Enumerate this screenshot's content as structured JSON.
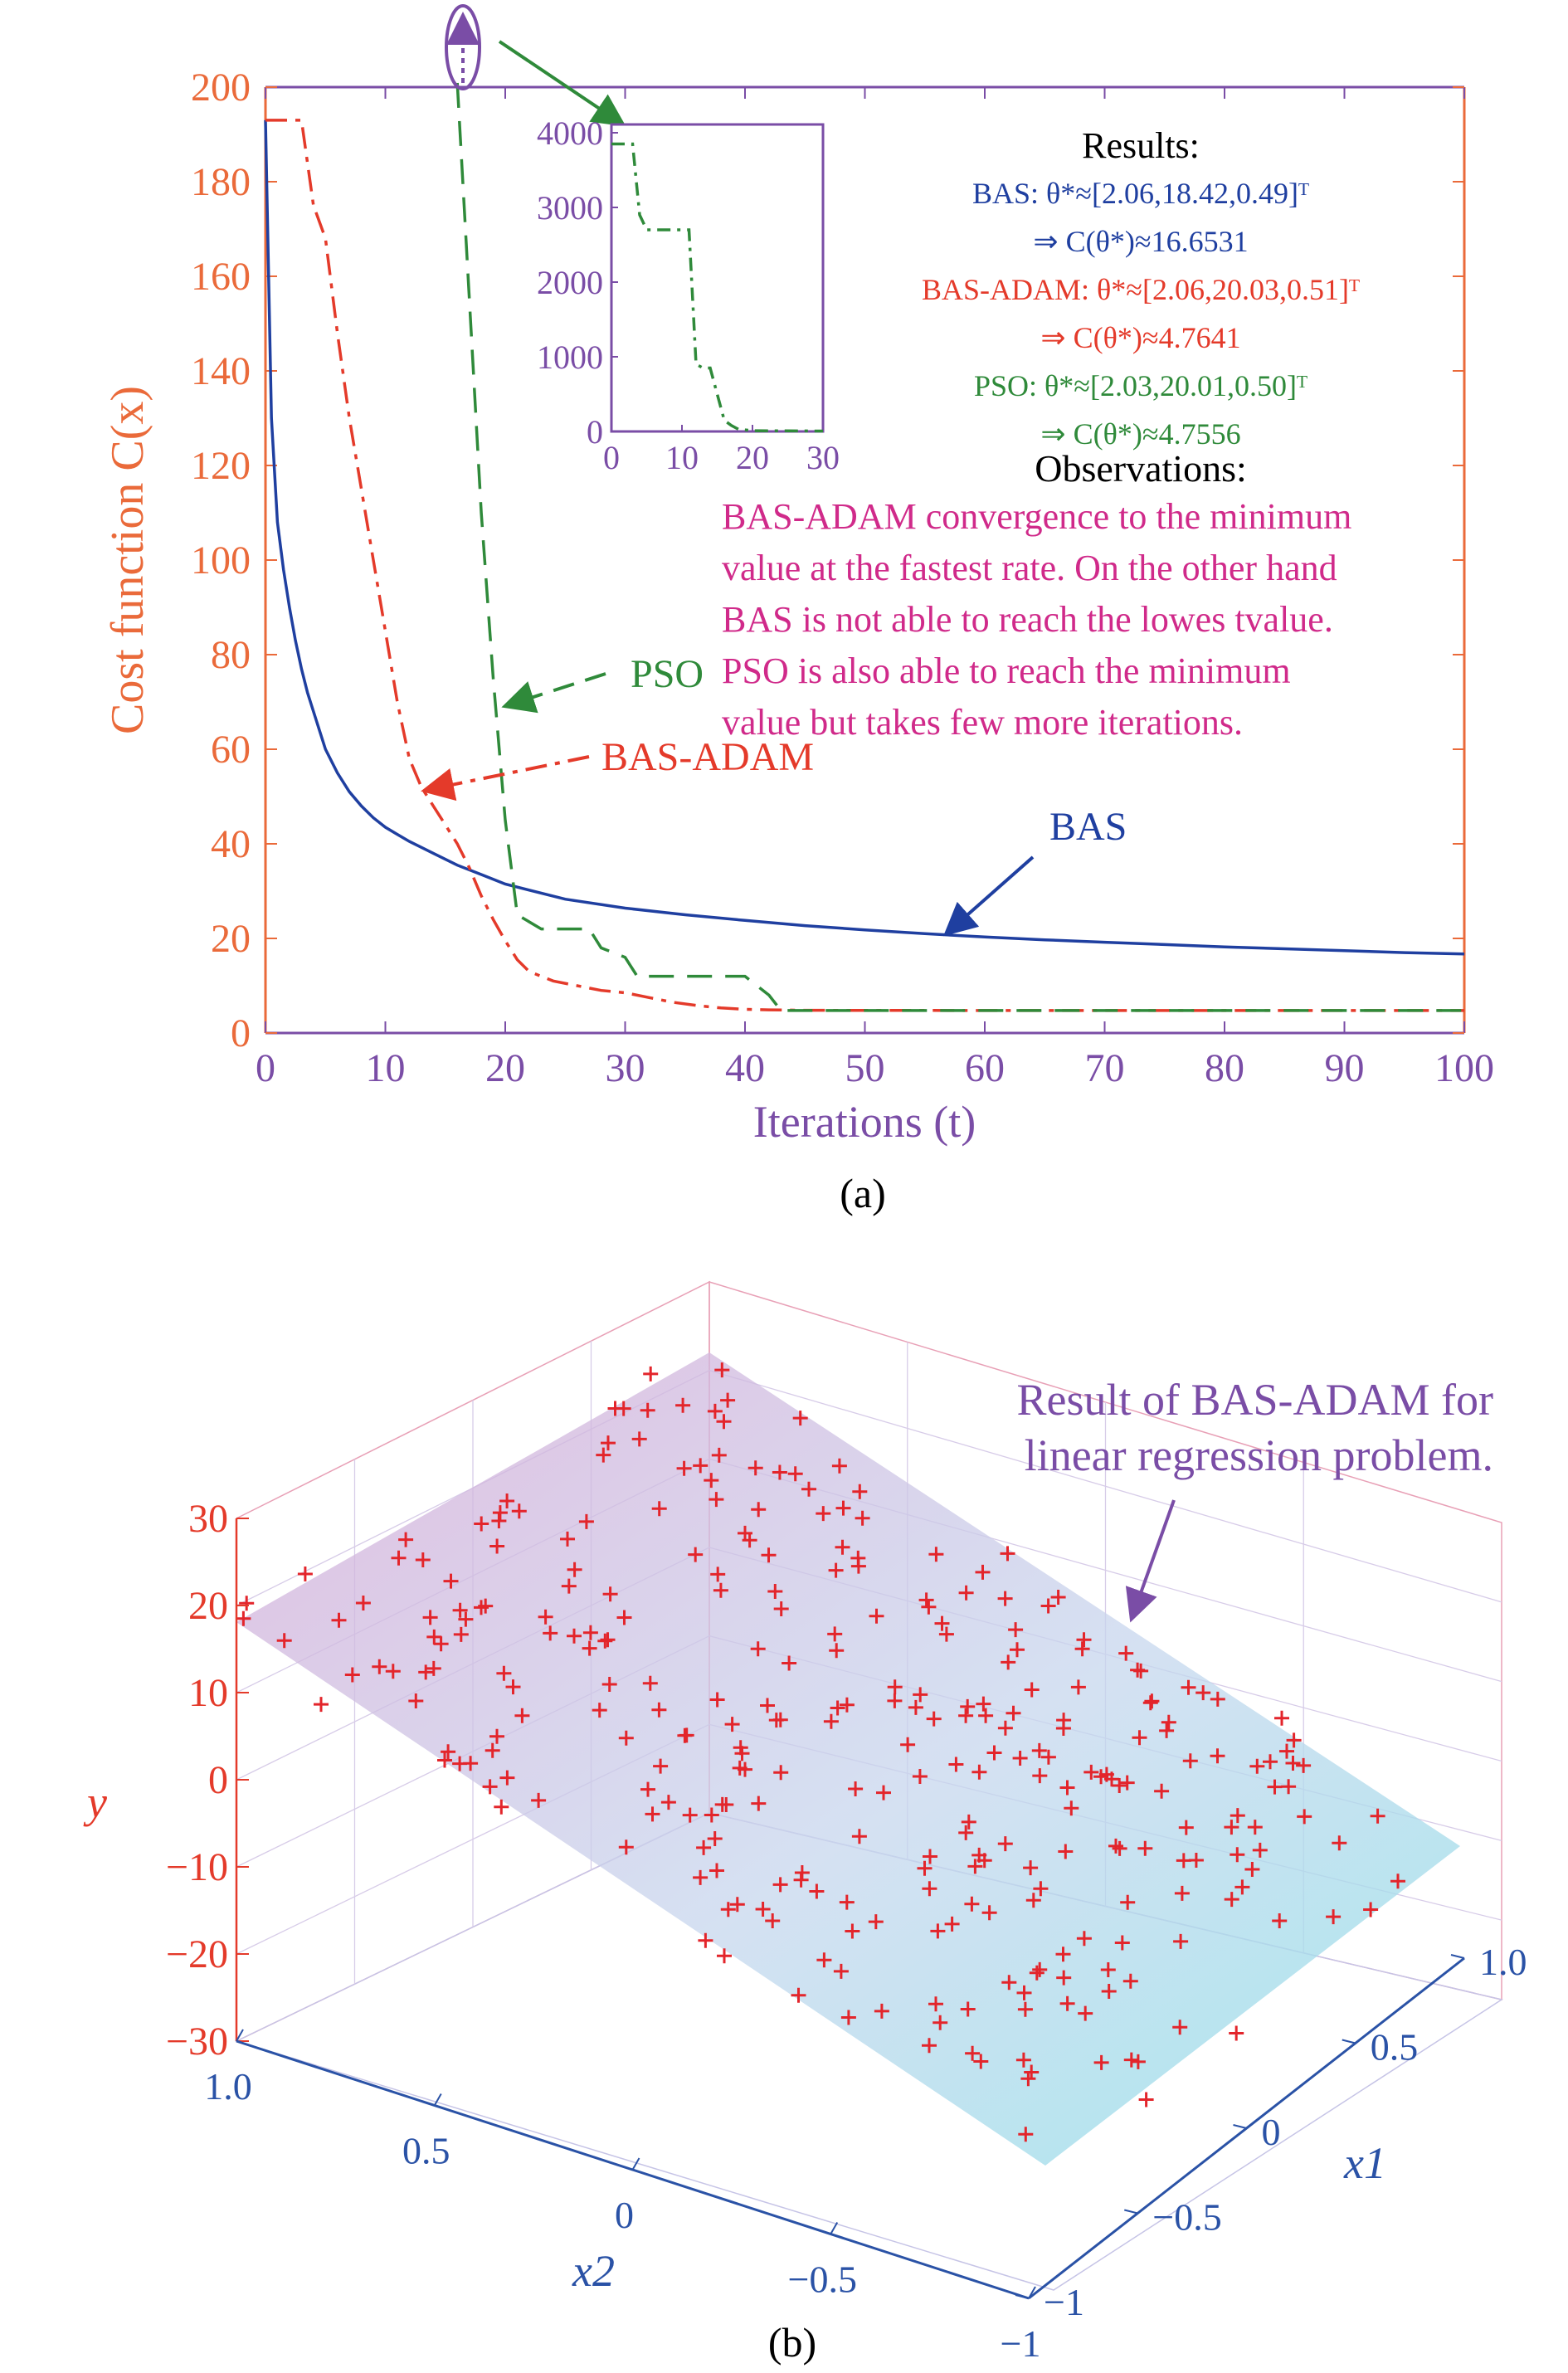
{
  "colors": {
    "bas": "#1f3fa0",
    "bas_adam": "#e43a2a",
    "pso": "#2f8a3a",
    "axis_orange": "#ea6a3a",
    "axis_purple": "#7a4da6",
    "magenta": "#d02a8a",
    "point_red": "#e3252b",
    "blue_axis": "#2a52a6"
  },
  "chart_data": [
    {
      "type": "line",
      "panel_label": "(a)",
      "xlabel": "Iterations (t)",
      "ylabel": "Cost function C(x)",
      "xlim": [
        0,
        100
      ],
      "ylim": [
        0,
        200
      ],
      "x_ticks": [
        0,
        10,
        20,
        30,
        40,
        50,
        60,
        70,
        80,
        90,
        100
      ],
      "y_ticks": [
        0,
        20,
        40,
        60,
        80,
        100,
        120,
        140,
        160,
        180,
        200
      ],
      "grid": false,
      "series": [
        {
          "name": "BAS",
          "style": "solid",
          "x": [
            0,
            0.5,
            1,
            1.5,
            2,
            2.5,
            3,
            3.5,
            4,
            5,
            6,
            7,
            8,
            9,
            10,
            11,
            12,
            14,
            16,
            18,
            20,
            25,
            30,
            35,
            40,
            45,
            50,
            55,
            60,
            65,
            70,
            75,
            80,
            85,
            90,
            95,
            100
          ],
          "y": [
            193,
            130,
            108,
            98,
            90,
            83,
            77,
            72,
            68,
            60,
            55,
            51,
            48,
            45.5,
            43.5,
            42,
            40.5,
            38,
            35.5,
            33.5,
            31.5,
            28.3,
            26.4,
            25,
            23.8,
            22.7,
            21.8,
            21,
            20.3,
            19.7,
            19.2,
            18.7,
            18.2,
            17.8,
            17.4,
            17,
            16.7
          ]
        },
        {
          "name": "BAS-ADAM",
          "style": "dash-dot",
          "x": [
            0,
            2,
            3,
            4,
            5,
            6,
            7,
            8,
            9,
            10,
            11,
            12,
            13,
            14,
            15,
            16,
            17,
            18,
            19,
            20,
            21,
            22,
            24,
            26,
            28,
            30,
            32,
            34,
            36,
            38,
            40,
            42,
            45,
            50,
            100
          ],
          "y": [
            193,
            193,
            193,
            175,
            168,
            148,
            130,
            115,
            100,
            85,
            70,
            58,
            52,
            48,
            44,
            40,
            35,
            29,
            24,
            19.5,
            15.5,
            13,
            11,
            10,
            9,
            8.5,
            7.5,
            6.5,
            5.8,
            5.3,
            5,
            4.9,
            4.8,
            4.77,
            4.76
          ]
        },
        {
          "name": "PSO",
          "style": "dashed",
          "x": [
            16,
            18,
            19,
            20,
            21,
            23,
            25,
            27,
            28,
            30,
            31,
            40,
            41,
            42,
            43,
            50,
            100
          ],
          "y": [
            205,
            110,
            75,
            45,
            25,
            22,
            22,
            22,
            18,
            16,
            12,
            12,
            10,
            8,
            4.76,
            4.76,
            4.76
          ]
        }
      ],
      "annotations": [
        "PSO",
        "BAS-ADAM",
        "BAS"
      ],
      "inset": {
        "xlim": [
          0,
          30
        ],
        "ylim": [
          0,
          4000
        ],
        "x_ticks": [
          0,
          10,
          20,
          30
        ],
        "y_ticks": [
          0,
          1000,
          2000,
          3000,
          4000
        ],
        "series": [
          {
            "name": "PSO",
            "style": "dash-dot",
            "x": [
              0,
              3,
              4,
              5,
              8,
              9,
              10,
              11,
              12,
              13,
              14,
              15,
              16,
              17,
              18,
              20,
              30
            ],
            "y": [
              3850,
              3850,
              2900,
              2700,
              2700,
              2700,
              2700,
              2700,
              900,
              850,
              850,
              500,
              150,
              80,
              30,
              10,
              5
            ]
          }
        ]
      },
      "results": {
        "heading": "Results:",
        "lines": [
          {
            "series": "BAS",
            "text": "BAS: θ*≈[2.06,18.42,0.49]ᵀ"
          },
          {
            "series": "BAS",
            "text": "⇒ C(θ*)≈16.6531"
          },
          {
            "series": "BAS-ADAM",
            "text": "BAS-ADAM: θ*≈[2.06,20.03,0.51]ᵀ"
          },
          {
            "series": "BAS-ADAM",
            "text": "⇒ C(θ*)≈4.7641"
          },
          {
            "series": "PSO",
            "text": "PSO: θ*≈[2.03,20.01,0.50]ᵀ"
          },
          {
            "series": "PSO",
            "text": "⇒ C(θ*)≈4.7556"
          }
        ]
      },
      "observations": {
        "heading": "Observations:",
        "lines": [
          "BAS-ADAM convergence to the minimum",
          "value at the fastest rate. On the other hand",
          "BAS is not able to reach the lowes tvalue.",
          "PSO is also able to reach the minimum",
          "value but takes few more iterations."
        ]
      }
    },
    {
      "type": "scatter",
      "subtype": "3d-scatter-with-plane",
      "panel_label": "(b)",
      "xlabel": "x1",
      "ylabel": "x2",
      "zlabel": "y",
      "x1_ticks": [
        "1.0",
        "0.5",
        "0",
        "−0.5",
        "−1"
      ],
      "x2_ticks": [
        "1.0",
        "0.5",
        "0",
        "−0.5",
        "−1"
      ],
      "y_ticks": [
        "30",
        "20",
        "10",
        "0",
        "−10",
        "−20",
        "−30"
      ],
      "x1_range": [
        -1,
        1
      ],
      "x2_range": [
        -1,
        1
      ],
      "y_range": [
        -30,
        30
      ],
      "annotation": [
        "Result of BAS-ADAM for",
        "linear regression problem."
      ],
      "plane": {
        "description": "Fitted regression plane, magenta to cyan gradient"
      },
      "point_count": 300
    }
  ]
}
